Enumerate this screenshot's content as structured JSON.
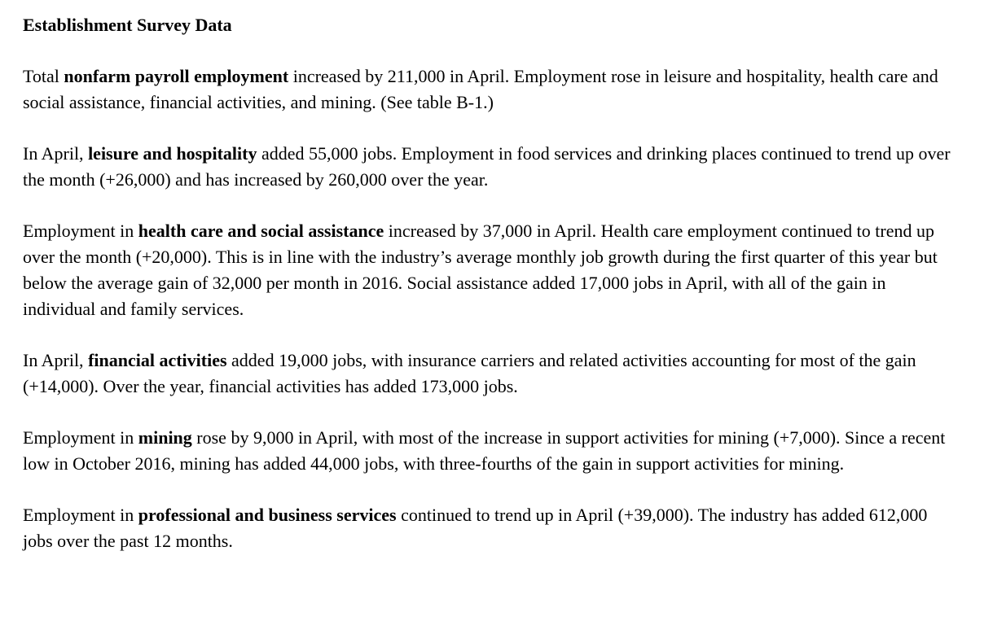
{
  "document": {
    "heading": "Establishment Survey Data",
    "paragraphs": [
      {
        "segments": [
          {
            "text": "Total ",
            "bold": false
          },
          {
            "text": "nonfarm payroll employment",
            "bold": true
          },
          {
            "text": " increased by 211,000 in April. Employment rose in leisure and hospitality, health care and social assistance, financial activities, and mining. (See table B-1.)",
            "bold": false
          }
        ]
      },
      {
        "segments": [
          {
            "text": "In April, ",
            "bold": false
          },
          {
            "text": "leisure and hospitality",
            "bold": true
          },
          {
            "text": " added 55,000 jobs. Employment in food services and drinking places continued to trend up over the month (+26,000) and has increased by 260,000 over the year.",
            "bold": false
          }
        ]
      },
      {
        "segments": [
          {
            "text": "Employment in ",
            "bold": false
          },
          {
            "text": "health care and social assistance",
            "bold": true
          },
          {
            "text": " increased by 37,000 in April. Health care employment continued to trend up over the month (+20,000). This is in line with the industry’s average monthly job growth during the first quarter of this year but below the average gain of 32,000 per month in 2016. Social assistance added 17,000 jobs in April, with all of the gain in individual and family services.",
            "bold": false
          }
        ]
      },
      {
        "segments": [
          {
            "text": "In April, ",
            "bold": false
          },
          {
            "text": "financial activities",
            "bold": true
          },
          {
            "text": " added 19,000 jobs, with insurance carriers and related activities accounting for most of the gain (+14,000). Over the year, financial activities has added 173,000 jobs.",
            "bold": false
          }
        ]
      },
      {
        "segments": [
          {
            "text": "Employment in ",
            "bold": false
          },
          {
            "text": "mining",
            "bold": true
          },
          {
            "text": " rose by 9,000 in April, with most of the increase in support activities for mining (+7,000). Since a recent low in October 2016, mining has added 44,000 jobs, with three-fourths of the gain in support activities for mining.",
            "bold": false
          }
        ]
      },
      {
        "segments": [
          {
            "text": "Employment in ",
            "bold": false
          },
          {
            "text": "professional and business services",
            "bold": true
          },
          {
            "text": " continued to trend up in April (+39,000). The industry has added 612,000 jobs over the past 12 months.",
            "bold": false
          }
        ]
      }
    ]
  }
}
